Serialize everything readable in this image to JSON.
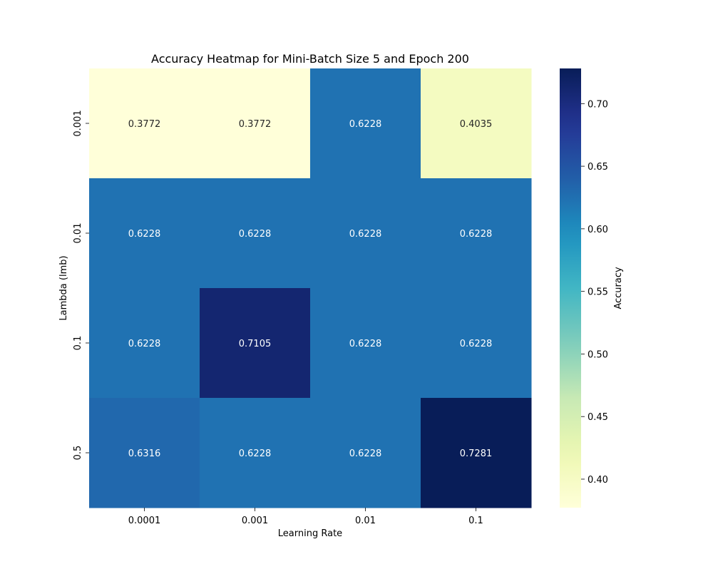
{
  "chart_data": {
    "type": "heatmap",
    "title": "Accuracy Heatmap for Mini-Batch Size 5 and Epoch 200",
    "xlabel": "Learning Rate",
    "ylabel": "Lambda (lmb)",
    "x_categories": [
      "0.0001",
      "0.001",
      "0.01",
      "0.1"
    ],
    "y_categories": [
      "0.001",
      "0.01",
      "0.1",
      "0.5"
    ],
    "values": [
      [
        0.3772,
        0.3772,
        0.6228,
        0.4035
      ],
      [
        0.6228,
        0.6228,
        0.6228,
        0.6228
      ],
      [
        0.6228,
        0.7105,
        0.6228,
        0.6228
      ],
      [
        0.6316,
        0.6228,
        0.6228,
        0.7281
      ]
    ],
    "cell_labels": [
      [
        "0.3772",
        "0.3772",
        "0.6228",
        "0.4035"
      ],
      [
        "0.6228",
        "0.6228",
        "0.6228",
        "0.6228"
      ],
      [
        "0.6228",
        "0.7105",
        "0.6228",
        "0.6228"
      ],
      [
        "0.6316",
        "0.6228",
        "0.6228",
        "0.7281"
      ]
    ],
    "colorbar": {
      "label": "Accuracy",
      "colormap": "YlGnBu",
      "vmin": 0.3772,
      "vmax": 0.7281,
      "ticks": [
        0.4,
        0.45,
        0.5,
        0.55,
        0.6,
        0.65,
        0.7
      ],
      "tick_labels": [
        "0.40",
        "0.45",
        "0.50",
        "0.55",
        "0.60",
        "0.65",
        "0.70"
      ]
    },
    "grid": false
  }
}
